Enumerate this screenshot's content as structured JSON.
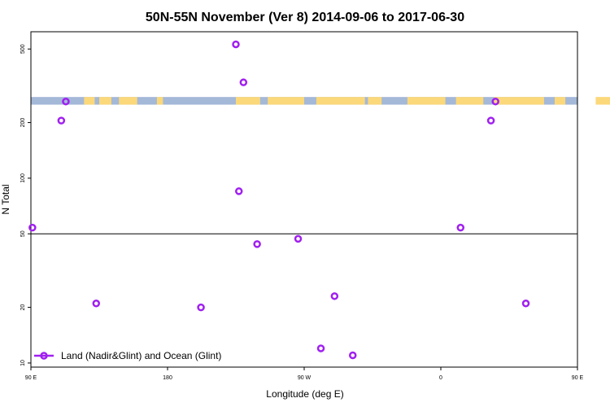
{
  "chart_data": {
    "type": "scatter",
    "title": "50N-55N November (Ver 8)   2014-09-06 to 2017-06-30",
    "xlabel": "Longitude (deg E)",
    "ylabel": "N Total",
    "x_scale": "linear",
    "y_scale": "log",
    "xlim": [
      90,
      450
    ],
    "ylim": [
      9.5,
      620
    ],
    "x_ticks": [
      {
        "value": 90,
        "label": "90 E"
      },
      {
        "value": 180,
        "label": "180"
      },
      {
        "value": 270,
        "label": "90 W"
      },
      {
        "value": 360,
        "label": "0"
      },
      {
        "value": 450,
        "label": "90 E"
      },
      {
        "value": 540,
        "label": "180"
      }
    ],
    "y_ticks": [
      {
        "value": 10,
        "label": "10"
      },
      {
        "value": 20,
        "label": "20"
      },
      {
        "value": 50,
        "label": "50"
      },
      {
        "value": 100,
        "label": "100"
      },
      {
        "value": 200,
        "label": "200"
      },
      {
        "value": 500,
        "label": "500"
      }
    ],
    "reference_line_y": 50,
    "land_ocean_strip": {
      "y_range": [
        250,
        275
      ],
      "ocean_color": "#a4b8d8",
      "land_color": "#fbd87a",
      "land_segments": [
        [
          125,
          132
        ],
        [
          135,
          143
        ],
        [
          148,
          160
        ],
        [
          173,
          177
        ],
        [
          225,
          241
        ],
        [
          246,
          270
        ],
        [
          278,
          310
        ],
        [
          312,
          321
        ],
        [
          338,
          363
        ],
        [
          370,
          388
        ],
        [
          395,
          428
        ],
        [
          435,
          442
        ],
        [
          462,
          480
        ],
        [
          489,
          492
        ]
      ]
    },
    "series": [
      {
        "name": "Land (Nadir&Glint) and Ocean (Glint)",
        "color": "#a020f0",
        "marker": "open-circle",
        "points": [
          {
            "x": 91,
            "y": 54
          },
          {
            "x": 110,
            "y": 205
          },
          {
            "x": 113,
            "y": 260
          },
          {
            "x": 133,
            "y": 21
          },
          {
            "x": 202,
            "y": 20
          },
          {
            "x": 225,
            "y": 530
          },
          {
            "x": 227,
            "y": 85
          },
          {
            "x": 230,
            "y": 330
          },
          {
            "x": 239,
            "y": 44
          },
          {
            "x": 266,
            "y": 47
          },
          {
            "x": 281,
            "y": 12
          },
          {
            "x": 290,
            "y": 23
          },
          {
            "x": 302,
            "y": 11
          },
          {
            "x": 373,
            "y": 54
          },
          {
            "x": 393,
            "y": 205
          },
          {
            "x": 396,
            "y": 260
          },
          {
            "x": 416,
            "y": 21
          }
        ]
      }
    ],
    "legend": {
      "position": "bottom-left",
      "entries": [
        "Land (Nadir&Glint) and Ocean (Glint)"
      ]
    }
  }
}
